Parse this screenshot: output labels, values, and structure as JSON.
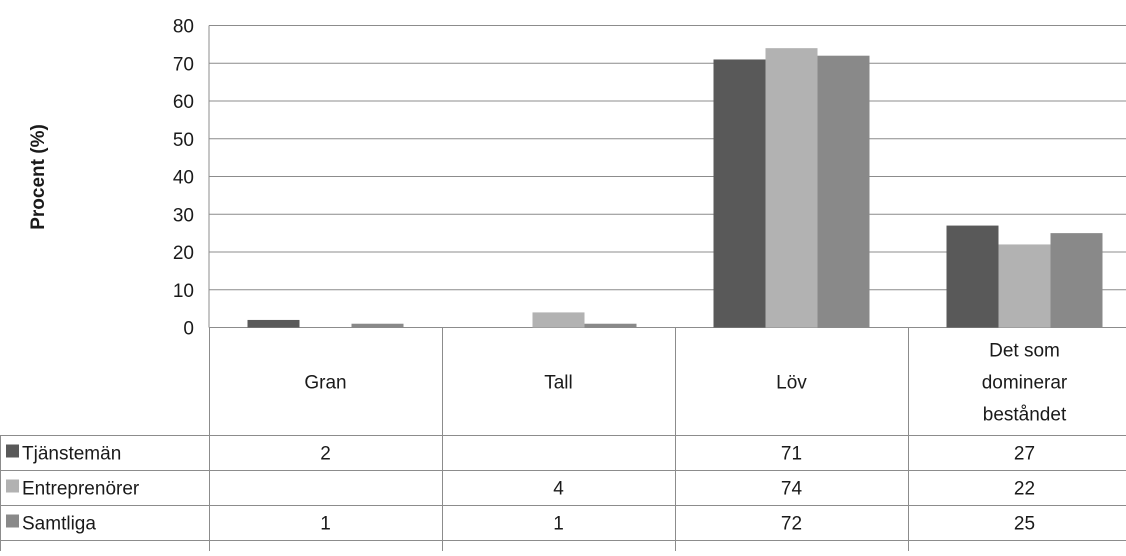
{
  "chart_data": {
    "type": "bar",
    "title": "",
    "xlabel": "",
    "ylabel": "Procent (%)",
    "ylim": [
      0,
      80
    ],
    "yticks": [
      0,
      10,
      20,
      30,
      40,
      50,
      60,
      70,
      80
    ],
    "grid": true,
    "legend": "data-table",
    "categories": [
      [
        "Gran"
      ],
      [
        "Tall"
      ],
      [
        "Löv"
      ],
      [
        "Det som",
        "dominerar",
        "beståndet"
      ]
    ],
    "series": [
      {
        "name": "Tjänstemän",
        "color": "#595959",
        "values": [
          2,
          null,
          71,
          27
        ]
      },
      {
        "name": "Entreprenörer",
        "color": "#b2b2b2",
        "values": [
          null,
          4,
          74,
          22
        ]
      },
      {
        "name": "Samtliga",
        "color": "#898989",
        "values": [
          1,
          1,
          72,
          25
        ]
      }
    ]
  }
}
